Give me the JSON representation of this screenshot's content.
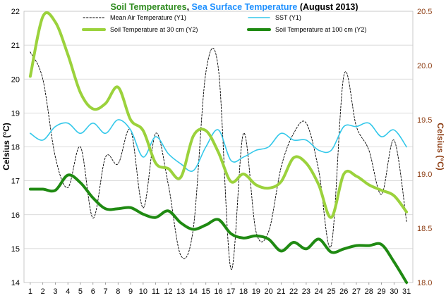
{
  "chart_data": {
    "type": "line",
    "title": {
      "parts": [
        {
          "text": "Soil Temperatures",
          "color": "#2e8b1e"
        },
        {
          "text": ", ",
          "color": "#000000"
        },
        {
          "text": "Sea Surface Temperature",
          "color": "#1e90ff"
        },
        {
          "text": " (August 2013)",
          "color": "#000000"
        }
      ]
    },
    "ylabel": "Celsius (°C)",
    "y2label": "Celsius (°C)",
    "ylim": [
      14,
      22
    ],
    "y2lim": [
      18,
      20.5
    ],
    "yticks": [
      "14",
      "15",
      "16",
      "17",
      "18",
      "19",
      "20",
      "21",
      "22"
    ],
    "y2ticks": [
      "18.0",
      "18.5",
      "19.0",
      "19.5",
      "20.0",
      "20.5"
    ],
    "x": [
      "1",
      "2",
      "3",
      "4",
      "5",
      "6",
      "7",
      "8",
      "9",
      "10",
      "11",
      "12",
      "13",
      "14",
      "15",
      "16",
      "17",
      "18",
      "19",
      "20",
      "21",
      "22",
      "23",
      "24",
      "25",
      "26",
      "27",
      "28",
      "29",
      "30",
      "31"
    ],
    "grid": "horizontal",
    "legend_position": "top",
    "series": [
      {
        "name": "Mean Air Temperature (Y1)",
        "axis": "y1",
        "color": "#000000",
        "style": "dashed",
        "values": [
          20.8,
          20.0,
          17.7,
          16.8,
          18.0,
          15.9,
          17.7,
          17.5,
          18.5,
          16.2,
          18.4,
          16.9,
          14.8,
          15.6,
          20.2,
          20.3,
          14.4,
          18.4,
          15.5,
          15.5,
          17.4,
          18.4,
          18.7,
          17.3,
          15.1,
          20.1,
          18.6,
          17.9,
          16.6,
          18.2,
          15.8
        ]
      },
      {
        "name": "SST (Y1)",
        "axis": "y1",
        "color": "#33c8ea",
        "style": "solid",
        "values": [
          18.4,
          18.2,
          18.6,
          18.7,
          18.4,
          18.7,
          18.4,
          18.8,
          18.5,
          17.7,
          18.3,
          17.8,
          17.5,
          17.3,
          18.0,
          18.5,
          17.6,
          17.7,
          17.9,
          18.0,
          18.4,
          18.2,
          18.2,
          17.9,
          17.9,
          18.6,
          18.6,
          18.7,
          18.3,
          18.5,
          18.0
        ]
      },
      {
        "name": "Soil Temperature at 30 cm (Y2)",
        "axis": "y2",
        "color": "#9bd23c",
        "style": "solid",
        "values": [
          19.9,
          20.45,
          20.4,
          20.1,
          19.75,
          19.6,
          19.65,
          19.8,
          19.5,
          19.4,
          19.1,
          19.05,
          18.97,
          19.35,
          19.4,
          19.2,
          18.93,
          19.0,
          18.9,
          18.87,
          18.93,
          19.15,
          19.1,
          18.9,
          18.6,
          19.0,
          18.98,
          18.9,
          18.85,
          18.8,
          18.65
        ]
      },
      {
        "name": "Soil Temperature at 100 cm (Y2)",
        "axis": "y2",
        "color": "#1f8a12",
        "style": "solid",
        "values": [
          18.86,
          18.86,
          18.85,
          18.99,
          18.92,
          18.78,
          18.68,
          18.68,
          18.69,
          18.63,
          18.6,
          18.66,
          18.55,
          18.49,
          18.53,
          18.58,
          18.45,
          18.41,
          18.43,
          18.4,
          18.29,
          18.37,
          18.31,
          18.4,
          18.28,
          18.31,
          18.34,
          18.34,
          18.35,
          18.19,
          18.0
        ]
      }
    ]
  }
}
